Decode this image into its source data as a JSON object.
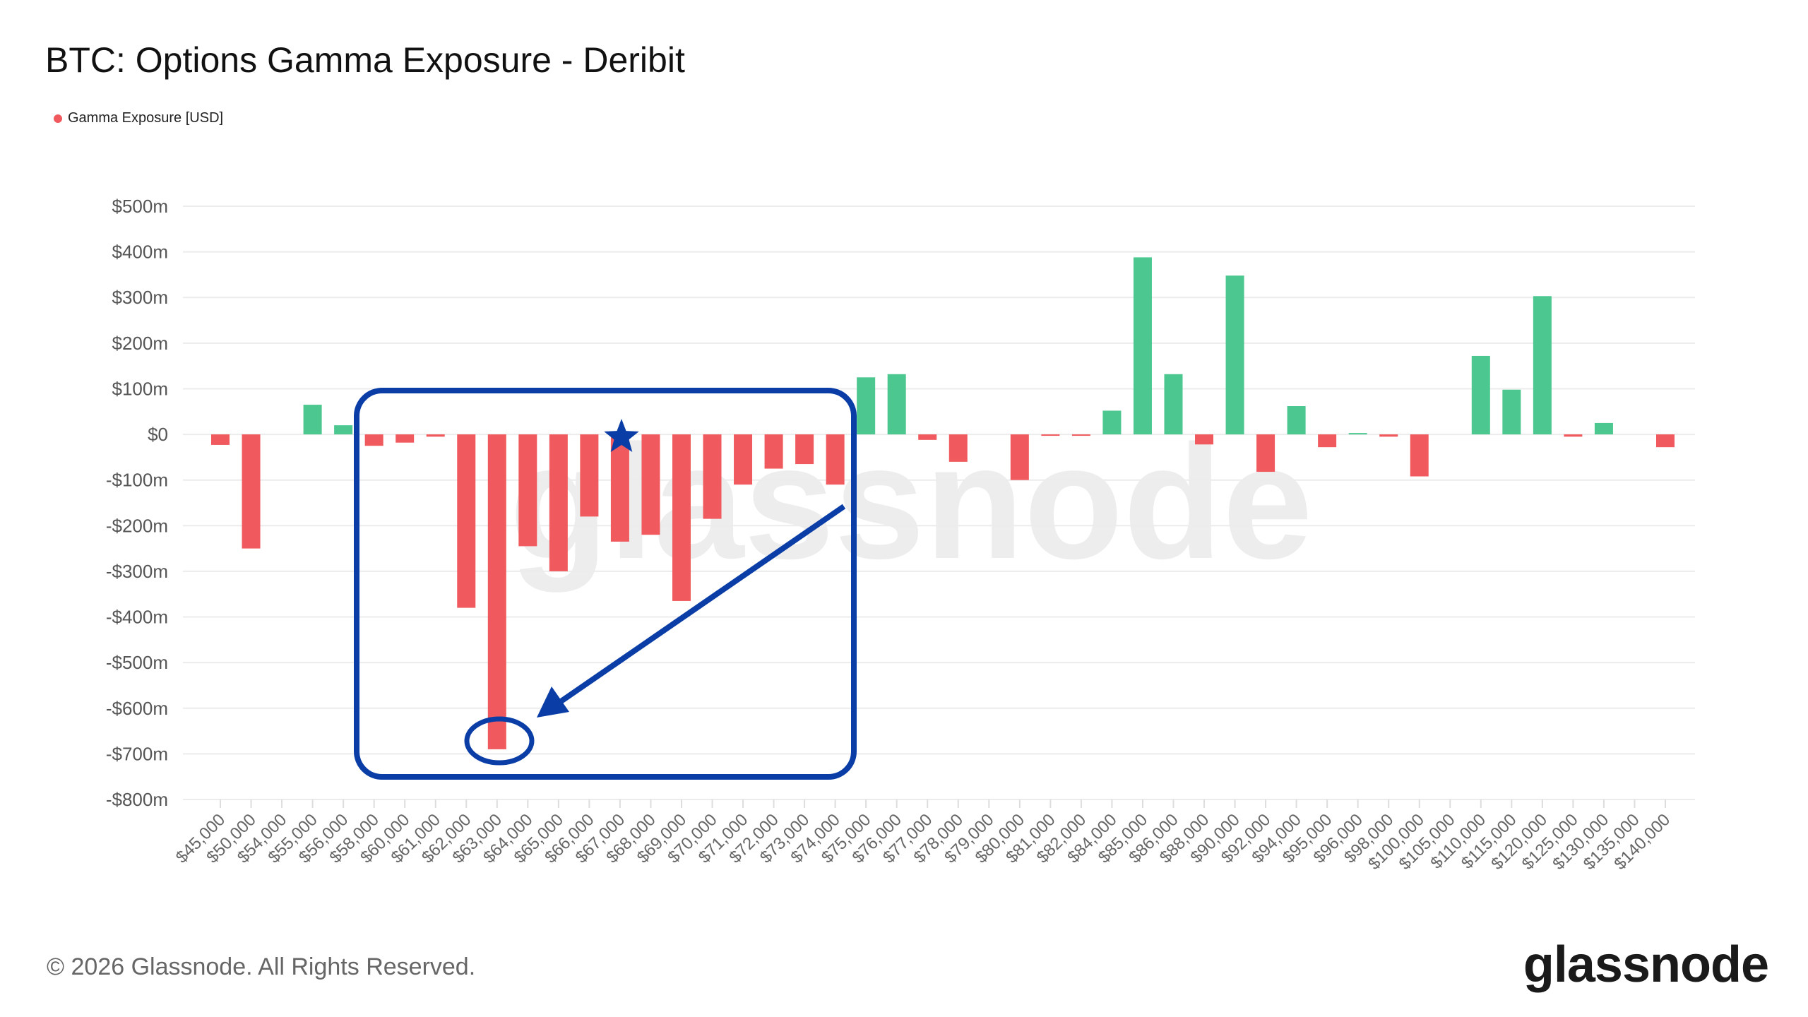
{
  "title": "BTC: Options Gamma Exposure - Deribit",
  "footer": "© 2026 Glassnode. All Rights Reserved.",
  "logo": "glassnode",
  "watermark": "glassnode",
  "colors": {
    "negative": "#f05a5e",
    "positive": "#4cc78f",
    "annotation": "#0a3ea6",
    "grid": "#ececec"
  },
  "chart_data": {
    "type": "bar",
    "title": "BTC: Options Gamma Exposure - Deribit",
    "legend": [
      {
        "name": "Gamma Exposure [USD]",
        "color": "#f05a5e"
      }
    ],
    "legend_position": "top-left",
    "ylabel": "Gamma Exposure [USD]",
    "ylim": [
      -800,
      500
    ],
    "yunit": "m",
    "yticks": [
      500,
      400,
      300,
      200,
      100,
      0,
      -100,
      -200,
      -300,
      -400,
      -500,
      -600,
      -700,
      -800
    ],
    "ytick_labels": [
      "$500m",
      "$400m",
      "$300m",
      "$200m",
      "$100m",
      "$0",
      "-$100m",
      "-$200m",
      "-$300m",
      "-$400m",
      "-$500m",
      "-$600m",
      "-$700m",
      "-$800m"
    ],
    "grid": true,
    "categories": [
      "$45,000",
      "$50,000",
      "$54,000",
      "$55,000",
      "$56,000",
      "$58,000",
      "$60,000",
      "$61,000",
      "$62,000",
      "$63,000",
      "$64,000",
      "$65,000",
      "$66,000",
      "$67,000",
      "$68,000",
      "$69,000",
      "$70,000",
      "$71,000",
      "$72,000",
      "$73,000",
      "$74,000",
      "$75,000",
      "$76,000",
      "$77,000",
      "$78,000",
      "$79,000",
      "$80,000",
      "$81,000",
      "$82,000",
      "$84,000",
      "$85,000",
      "$86,000",
      "$88,000",
      "$90,000",
      "$92,000",
      "$94,000",
      "$95,000",
      "$96,000",
      "$98,000",
      "$100,000",
      "$105,000",
      "$110,000",
      "$115,000",
      "$120,000",
      "$125,000",
      "$130,000",
      "$135,000",
      "$140,000"
    ],
    "values": [
      -23,
      -250,
      0,
      65,
      20,
      -25,
      -18,
      -5,
      -380,
      -690,
      -245,
      -300,
      -180,
      -235,
      -220,
      -365,
      -185,
      -110,
      -75,
      -65,
      -110,
      125,
      132,
      -12,
      -60,
      0,
      -100,
      -3,
      -3,
      52,
      388,
      132,
      -22,
      348,
      -82,
      62,
      -28,
      3,
      -5,
      -92,
      0,
      172,
      98,
      303,
      -5,
      25,
      0,
      -28
    ]
  }
}
